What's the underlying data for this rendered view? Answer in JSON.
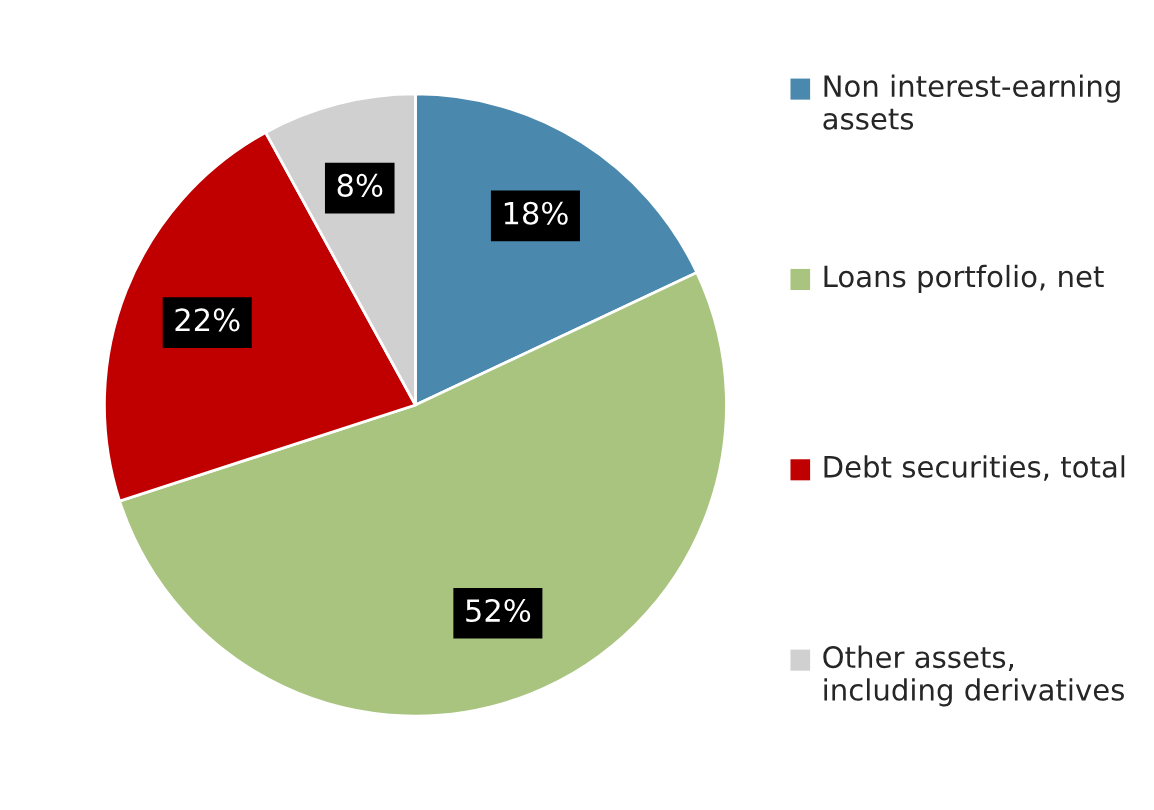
{
  "chart_data": {
    "type": "pie",
    "categories": [
      "Non interest-earning assets",
      "Loans portfolio, net",
      "Debt securities, total",
      "Other assets, including derivatives"
    ],
    "values": [
      18,
      52,
      22,
      8
    ],
    "colors": [
      "#4a89ad",
      "#a9c47f",
      "#c00000",
      "#d0d0d0"
    ],
    "value_labels": [
      "18%",
      "52%",
      "22%",
      "8%"
    ],
    "legend": "right"
  }
}
